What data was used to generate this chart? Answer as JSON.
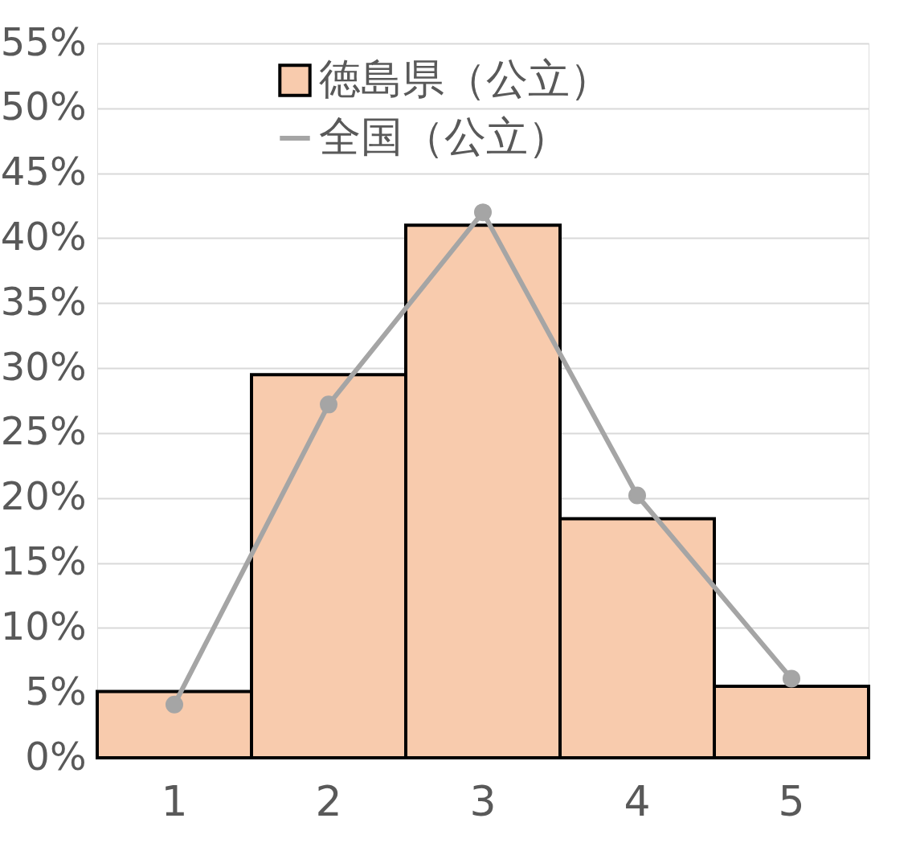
{
  "chart_data": {
    "type": "bar",
    "categories": [
      "1",
      "2",
      "3",
      "4",
      "5"
    ],
    "series": [
      {
        "name": "徳島県（公立）",
        "color": "#f8cbad",
        "values": [
          5.1,
          29.5,
          41.0,
          18.4,
          5.5
        ]
      },
      {
        "name": "全国（公立）",
        "type": "line",
        "color": "#a5a5a5",
        "values": [
          4.1,
          27.2,
          42.0,
          20.2,
          6.1
        ]
      }
    ],
    "ylim": [
      0,
      55
    ],
    "yticks": [
      {
        "value": 0,
        "label": "0%"
      },
      {
        "value": 5,
        "label": "5%"
      },
      {
        "value": 10,
        "label": "10%"
      },
      {
        "value": 15,
        "label": "15%"
      },
      {
        "value": 20,
        "label": "20%"
      },
      {
        "value": 25,
        "label": "25%"
      },
      {
        "value": 30,
        "label": "30%"
      },
      {
        "value": 35,
        "label": "35%"
      },
      {
        "value": 40,
        "label": "40%"
      },
      {
        "value": 45,
        "label": "45%"
      },
      {
        "value": 50,
        "label": "50%"
      },
      {
        "value": 55,
        "label": "55%"
      }
    ],
    "grid": "y",
    "legend": "top",
    "marker": "circle",
    "line_style": "solid"
  }
}
